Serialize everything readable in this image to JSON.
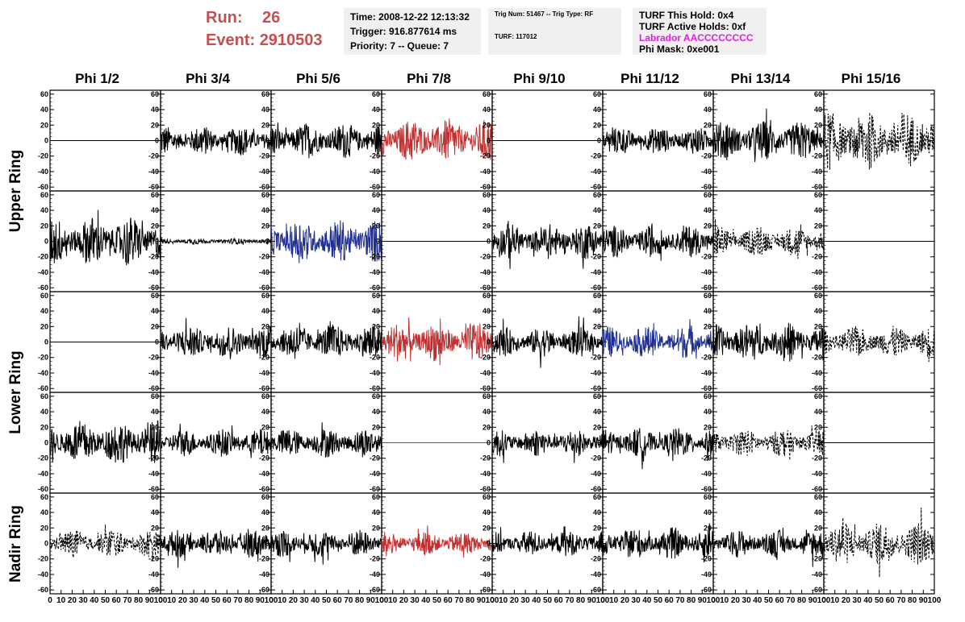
{
  "header": {
    "run_label": "Run:",
    "run_value": "26",
    "event_label": "Event:",
    "event_value": "2910503"
  },
  "info_time": {
    "time": "Time: 2008-12-22 12:13:32",
    "trigger": "Trigger: 916.877614 ms",
    "priority": "Priority: 7 -- Queue: 7"
  },
  "info_trig": {
    "trig": "Trig Num: 51467 -- Trig Type: RF",
    "turf": "TURF: 117012"
  },
  "info_turf": {
    "hold": "TURF This Hold: 0x4",
    "active": "TURF Active Holds: 0xf",
    "labrador": "Labrador AACCCCCCCC",
    "phimask": "Phi Mask: 0xe001",
    "labrador_color": "#e020e0"
  },
  "phi_headers": [
    "Phi 1/2",
    "Phi 3/4",
    "Phi 5/6",
    "Phi 7/8",
    "Phi 9/10",
    "Phi 11/12",
    "Phi 13/14",
    "Phi 15/16"
  ],
  "ring_labels": [
    "Upper Ring",
    "Lower Ring",
    "Nadir Ring"
  ],
  "chart_data": {
    "type": "line",
    "description_grid": "5 rows x 8 columns of waveform panels",
    "x_range": [
      0,
      100
    ],
    "y_range": [
      -65,
      65
    ],
    "y_ticks": [
      -60,
      -40,
      -20,
      0,
      20,
      40,
      60
    ],
    "x_ticks": [
      0,
      10,
      20,
      30,
      40,
      50,
      60,
      70,
      80,
      90,
      100
    ],
    "colors": {
      "black": "#000000",
      "red": "#c03030",
      "blue": "#203090",
      "green": "#00a000"
    },
    "panels": [
      [
        {
          "style": "flat",
          "color": "black",
          "amp": 0
        },
        {
          "style": "solid",
          "color": "black",
          "amp": 15
        },
        {
          "style": "solid",
          "color": "black",
          "amp": 18
        },
        {
          "style": "solid",
          "color": "red",
          "amp": 22
        },
        {
          "style": "flat",
          "color": "black",
          "amp": 0
        },
        {
          "style": "solid",
          "color": "black",
          "amp": 14
        },
        {
          "style": "solid",
          "color": "black",
          "amp": 20
        },
        {
          "style": "dashed",
          "color": "black",
          "amp": 30
        }
      ],
      [
        {
          "style": "solid",
          "color": "black",
          "amp": 25
        },
        {
          "style": "solid",
          "color": "black",
          "amp": 3
        },
        {
          "style": "solid",
          "color": "blue",
          "amp": 22
        },
        {
          "style": "flat",
          "color": "black",
          "amp": 0
        },
        {
          "style": "solid",
          "color": "black",
          "amp": 18
        },
        {
          "style": "solid",
          "color": "black",
          "amp": 16
        },
        {
          "style": "dashed",
          "color": "black",
          "amp": 15
        },
        {
          "style": "flat",
          "color": "black",
          "amp": 0
        }
      ],
      [
        {
          "style": "flat",
          "color": "black",
          "amp": 0
        },
        {
          "style": "solid",
          "color": "black",
          "amp": 17
        },
        {
          "style": "solid",
          "color": "black",
          "amp": 18
        },
        {
          "style": "solid",
          "color": "red",
          "amp": 20
        },
        {
          "style": "solid",
          "color": "black",
          "amp": 15
        },
        {
          "style": "solid",
          "color": "blue",
          "amp": 16
        },
        {
          "style": "solid",
          "color": "black",
          "amp": 20
        },
        {
          "style": "dashed",
          "color": "black",
          "amp": 16
        }
      ],
      [
        {
          "style": "solid",
          "color": "black",
          "amp": 22
        },
        {
          "style": "solid",
          "color": "black",
          "amp": 14
        },
        {
          "style": "solid",
          "color": "black",
          "amp": 15
        },
        {
          "style": "flat",
          "color": "green",
          "amp": 0
        },
        {
          "style": "solid",
          "color": "black",
          "amp": 14
        },
        {
          "style": "solid",
          "color": "black",
          "amp": 15
        },
        {
          "style": "dashed",
          "color": "black",
          "amp": 14
        },
        {
          "style": "flat",
          "color": "black",
          "amp": 0
        }
      ],
      [
        {
          "style": "dashed",
          "color": "black",
          "amp": 14
        },
        {
          "style": "solid",
          "color": "black",
          "amp": 14
        },
        {
          "style": "solid",
          "color": "black",
          "amp": 14
        },
        {
          "style": "solid",
          "color": "red",
          "amp": 12
        },
        {
          "style": "solid",
          "color": "black",
          "amp": 13
        },
        {
          "style": "solid",
          "color": "black",
          "amp": 16
        },
        {
          "style": "solid",
          "color": "black",
          "amp": 14
        },
        {
          "style": "dashed",
          "color": "black",
          "amp": 22
        }
      ]
    ]
  }
}
